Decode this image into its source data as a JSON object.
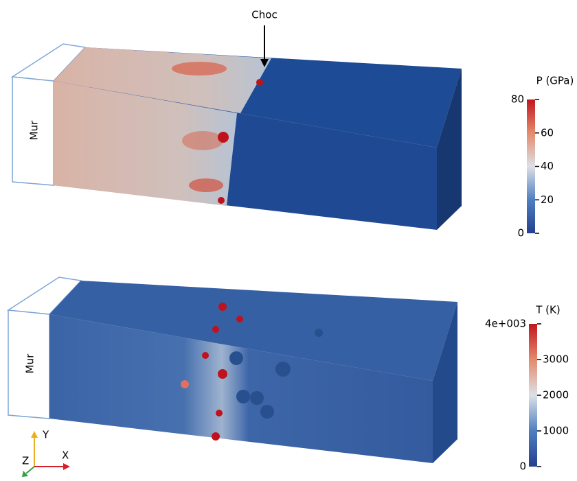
{
  "annotation": "Choc",
  "panels": [
    {
      "wall_label": "Mur",
      "colorbar": {
        "title": "P (GPa)",
        "lim": [
          0,
          80
        ],
        "ticks": [
          0,
          20,
          40,
          60,
          80
        ]
      }
    },
    {
      "wall_label": "Mur",
      "colorbar": {
        "title": "T (K)",
        "lim": [
          0,
          4000
        ],
        "ticks": [
          0,
          1000,
          2000,
          3000,
          {
            "value": 4000,
            "label": "4e+003"
          }
        ]
      }
    }
  ],
  "axes_triad": {
    "x": "X",
    "y": "Y",
    "z": "Z"
  }
}
